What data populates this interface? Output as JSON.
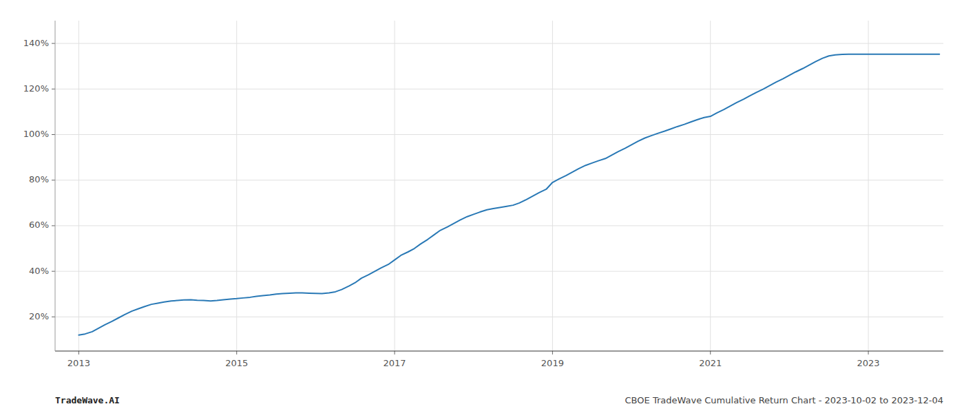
{
  "chart_data": {
    "type": "line",
    "title": "CBOE TradeWave Cumulative Return Chart - 2023-10-02 to 2023-12-04",
    "annotations": [
      "TradeWave.AI"
    ],
    "color": "#2878b5",
    "grid": true,
    "xlim": [
      2012.7,
      2023.95
    ],
    "ylim": [
      5,
      150
    ],
    "xticks": [
      2013,
      2015,
      2017,
      2019,
      2021,
      2023
    ],
    "yticks": [
      {
        "value": 20,
        "label": "20%"
      },
      {
        "value": 40,
        "label": "40%"
      },
      {
        "value": 60,
        "label": "60%"
      },
      {
        "value": 80,
        "label": "80%"
      },
      {
        "value": 100,
        "label": "100%"
      },
      {
        "value": 120,
        "label": "120%"
      },
      {
        "value": 140,
        "label": "140%"
      }
    ],
    "x": [
      2013.0,
      2013.08,
      2013.17,
      2013.25,
      2013.33,
      2013.42,
      2013.5,
      2013.58,
      2013.67,
      2013.75,
      2013.83,
      2013.92,
      2014.0,
      2014.08,
      2014.17,
      2014.25,
      2014.33,
      2014.42,
      2014.5,
      2014.58,
      2014.67,
      2014.75,
      2014.83,
      2014.92,
      2015.0,
      2015.08,
      2015.17,
      2015.25,
      2015.33,
      2015.42,
      2015.5,
      2015.58,
      2015.67,
      2015.75,
      2015.83,
      2015.92,
      2016.0,
      2016.08,
      2016.17,
      2016.25,
      2016.33,
      2016.42,
      2016.5,
      2016.58,
      2016.67,
      2016.75,
      2016.83,
      2016.92,
      2017.0,
      2017.08,
      2017.17,
      2017.25,
      2017.33,
      2017.42,
      2017.5,
      2017.58,
      2017.67,
      2017.75,
      2017.83,
      2017.92,
      2018.0,
      2018.08,
      2018.17,
      2018.25,
      2018.33,
      2018.42,
      2018.5,
      2018.58,
      2018.67,
      2018.75,
      2018.83,
      2018.92,
      2019.0,
      2019.08,
      2019.17,
      2019.25,
      2019.33,
      2019.42,
      2019.5,
      2019.58,
      2019.67,
      2019.75,
      2019.83,
      2019.92,
      2020.0,
      2020.08,
      2020.17,
      2020.25,
      2020.33,
      2020.42,
      2020.5,
      2020.58,
      2020.67,
      2020.75,
      2020.83,
      2020.92,
      2021.0,
      2021.08,
      2021.17,
      2021.25,
      2021.33,
      2021.42,
      2021.5,
      2021.58,
      2021.67,
      2021.75,
      2021.83,
      2021.92,
      2022.0,
      2022.08,
      2022.17,
      2022.25,
      2022.33,
      2022.42,
      2022.5,
      2022.58,
      2022.67,
      2022.75,
      2022.83,
      2022.92,
      2023.0,
      2023.08,
      2023.17,
      2023.25,
      2023.33,
      2023.42,
      2023.5,
      2023.75,
      2023.9
    ],
    "values": [
      12.0,
      12.5,
      13.5,
      15.0,
      16.5,
      18.0,
      19.5,
      21.0,
      22.5,
      23.5,
      24.5,
      25.5,
      26.0,
      26.5,
      27.0,
      27.2,
      27.4,
      27.5,
      27.3,
      27.2,
      27.0,
      27.2,
      27.5,
      27.8,
      28.0,
      28.3,
      28.6,
      29.0,
      29.3,
      29.6,
      30.0,
      30.2,
      30.4,
      30.5,
      30.5,
      30.4,
      30.3,
      30.2,
      30.5,
      31.0,
      32.0,
      33.5,
      35.0,
      37.0,
      38.5,
      40.0,
      41.5,
      43.0,
      45.0,
      47.0,
      48.5,
      50.0,
      52.0,
      54.0,
      56.0,
      58.0,
      59.5,
      61.0,
      62.5,
      64.0,
      65.0,
      66.0,
      67.0,
      67.5,
      68.0,
      68.5,
      69.0,
      70.0,
      71.5,
      73.0,
      74.5,
      76.0,
      79.0,
      80.5,
      82.0,
      83.5,
      85.0,
      86.5,
      87.5,
      88.5,
      89.5,
      91.0,
      92.5,
      94.0,
      95.5,
      97.0,
      98.5,
      99.5,
      100.5,
      101.5,
      102.5,
      103.5,
      104.5,
      105.5,
      106.5,
      107.5,
      108.0,
      109.5,
      111.0,
      112.5,
      114.0,
      115.5,
      117.0,
      118.5,
      120.0,
      121.5,
      123.0,
      124.5,
      126.0,
      127.5,
      129.0,
      130.5,
      132.0,
      133.5,
      134.5,
      135.0,
      135.2,
      135.3,
      135.3,
      135.3,
      135.3,
      135.3,
      135.3,
      135.3,
      135.3,
      135.3,
      135.3,
      135.3,
      135.3
    ]
  }
}
